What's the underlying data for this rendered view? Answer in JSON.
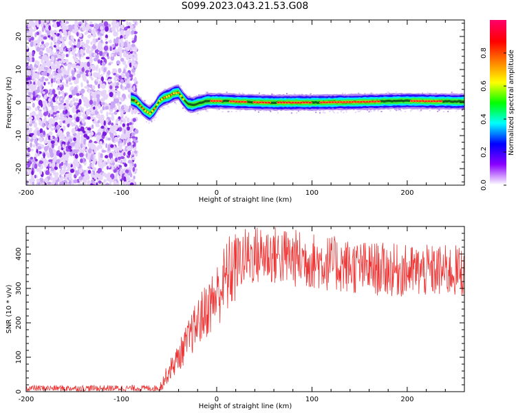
{
  "figure": {
    "title": "S099.2023.043.21.53.G08"
  },
  "chart_data": [
    {
      "type": "heatmap",
      "title": "",
      "xlabel": "Height of straight line (km)",
      "ylabel": "Frequency (Hz)",
      "xlim": [
        -200,
        260
      ],
      "ylim": [
        -25,
        25
      ],
      "xticks": [
        -200,
        -100,
        0,
        100,
        200
      ],
      "xtick_labels": [
        "-200",
        "-100",
        "0",
        "100",
        "200"
      ],
      "yticks": [
        -20,
        -10,
        0,
        10,
        20
      ],
      "ytick_labels": [
        "-20",
        "-10",
        "0",
        "10",
        "20"
      ],
      "colorbar": {
        "label": "Normalized spectral amplitude",
        "range": [
          0,
          1
        ],
        "ticks": [
          0.0,
          0.2,
          0.4,
          0.6,
          0.8
        ],
        "tick_labels": [
          "0.0",
          "0.2",
          "0.4",
          "0.6",
          "0.8"
        ],
        "colormap": [
          "#ffffff",
          "#8a00ff",
          "#0000ff",
          "#00ffff",
          "#00ff00",
          "#ffff00",
          "#ff8000",
          "#ff0000",
          "#ff0066"
        ]
      },
      "noise_region_x": [
        -200,
        -90
      ],
      "ridge": {
        "x": [
          -90,
          -85,
          -80,
          -75,
          -70,
          -65,
          -60,
          -55,
          -50,
          -45,
          -40,
          -35,
          -30,
          -25,
          -20,
          -10,
          0,
          20,
          50,
          100,
          150,
          200,
          260
        ],
        "freq": [
          1.0,
          0.5,
          -1.0,
          -2.5,
          -3.3,
          -1.8,
          0.5,
          1.5,
          2.0,
          2.8,
          3.0,
          1.0,
          -0.5,
          -0.8,
          -0.3,
          0.5,
          0.5,
          0.3,
          0.0,
          0.0,
          0.2,
          0.5,
          0.3
        ]
      },
      "peak_segments_x": [
        [
          -5,
          5
        ],
        [
          15,
          30
        ],
        [
          40,
          55
        ],
        [
          65,
          100
        ],
        [
          110,
          170
        ],
        [
          205,
          235
        ]
      ]
    },
    {
      "type": "line",
      "title": "",
      "xlabel": "Height of straight line (km)",
      "ylabel": "SNR (10 * v/v)",
      "xlim": [
        -200,
        260
      ],
      "ylim": [
        0,
        480
      ],
      "xticks": [
        -200,
        -100,
        0,
        100,
        200
      ],
      "xtick_labels": [
        "-200",
        "-100",
        "0",
        "100",
        "200"
      ],
      "yticks": [
        0,
        100,
        200,
        300,
        400
      ],
      "ytick_labels": [
        "0",
        "100",
        "200",
        "300",
        "400"
      ],
      "color": "#ee3333",
      "trend": {
        "x": [
          -200,
          -60,
          -50,
          -40,
          -30,
          -20,
          -10,
          0,
          10,
          20,
          30,
          50,
          100,
          150,
          200,
          260
        ],
        "y": [
          10,
          10,
          60,
          100,
          150,
          200,
          240,
          280,
          330,
          370,
          390,
          400,
          380,
          360,
          350,
          350
        ]
      }
    }
  ]
}
